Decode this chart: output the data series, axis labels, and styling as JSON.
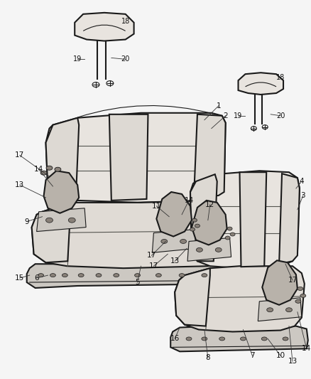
{
  "bg_color": "#f5f5f5",
  "line_color": "#1a1a1a",
  "lw_main": 1.5,
  "lw_thin": 0.8,
  "lw_label": 0.6,
  "fig_width": 4.38,
  "fig_height": 5.33,
  "dpi": 100,
  "seat_fill": "#e8e4df",
  "seat_fill2": "#ddd9d3",
  "cushion_fill": "#e0dbd5",
  "platform_fill": "#ccc8c2",
  "hinge_fill": "#b8b2aa",
  "dark_fill": "#888078"
}
